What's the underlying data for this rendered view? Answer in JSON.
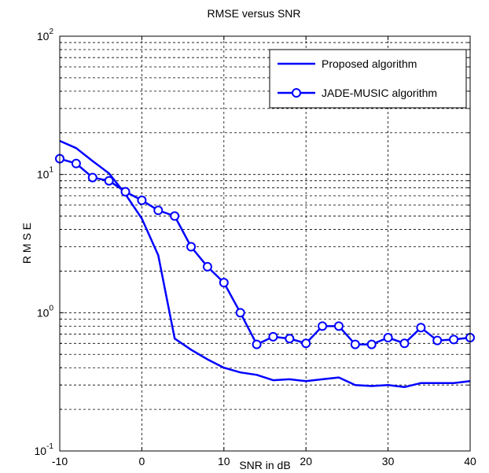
{
  "chart_data": {
    "type": "line",
    "title": "RMSE versus SNR",
    "xlabel": "SNR in dB",
    "ylabel": "R M S E",
    "xlim": [
      -10,
      40
    ],
    "ylim": [
      0.1,
      100
    ],
    "yscale": "log",
    "grid": true,
    "legend_position": "top-right",
    "x_ticks": [
      -10,
      0,
      10,
      20,
      30,
      40
    ],
    "y_ticks": [
      {
        "base": "10",
        "exp": "-1"
      },
      {
        "base": "10",
        "exp": "0"
      },
      {
        "base": "10",
        "exp": "1"
      },
      {
        "base": "10",
        "exp": "2"
      }
    ],
    "series": [
      {
        "name": "Proposed algorithm",
        "color": "#0000ff",
        "marker": "none",
        "x": [
          -10,
          -8,
          -6,
          -4,
          -2,
          0,
          2,
          4,
          6,
          8,
          10,
          12,
          14,
          16,
          18,
          20,
          22,
          24,
          26,
          28,
          30,
          32,
          34,
          36,
          38,
          40
        ],
        "y": [
          17.5,
          15.5,
          12.5,
          10.2,
          7.2,
          4.8,
          2.6,
          0.65,
          0.54,
          0.46,
          0.4,
          0.37,
          0.355,
          0.325,
          0.33,
          0.32,
          0.33,
          0.34,
          0.3,
          0.295,
          0.3,
          0.29,
          0.31,
          0.31,
          0.31,
          0.32
        ]
      },
      {
        "name": "JADE-MUSIC algorithm",
        "color": "#0000ff",
        "marker": "circle",
        "x": [
          -10,
          -8,
          -6,
          -4,
          -2,
          0,
          2,
          4,
          6,
          8,
          10,
          12,
          14,
          16,
          18,
          20,
          22,
          24,
          26,
          28,
          30,
          32,
          34,
          36,
          38,
          40
        ],
        "y": [
          13,
          12,
          9.5,
          9,
          7.5,
          6.5,
          5.5,
          5,
          3,
          2.15,
          1.65,
          1.0,
          0.59,
          0.67,
          0.65,
          0.6,
          0.8,
          0.8,
          0.59,
          0.59,
          0.66,
          0.6,
          0.78,
          0.63,
          0.64,
          0.66
        ]
      }
    ]
  }
}
